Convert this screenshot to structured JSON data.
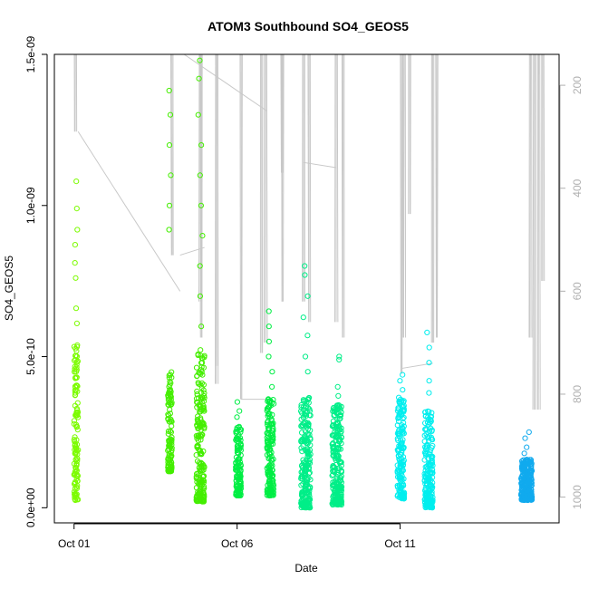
{
  "chart_data": {
    "type": "scatter",
    "title": "ATOM3 Southbound SO4_GEOS5",
    "xlabel": "Date",
    "ylabel": "SO4_GEOS5",
    "xlim": [
      "2017-09-30T09:30",
      "2017-10-15T21:00"
    ],
    "ylim": [
      -5e-11,
      1.5e-09
    ],
    "x_ticks": [
      {
        "date": "2017-10-01",
        "label": "Oct 01"
      },
      {
        "date": "2017-10-06",
        "label": "Oct 06"
      },
      {
        "date": "2017-10-11",
        "label": "Oct 11"
      }
    ],
    "y_ticks": [
      {
        "value": 0,
        "label": "0.0e+00"
      },
      {
        "value": 5e-10,
        "label": "5.0e-10"
      },
      {
        "value": 1e-09,
        "label": "1.0e-09"
      },
      {
        "value": 1.5e-09,
        "label": "1.5e-09"
      }
    ],
    "right_axis": {
      "lim": [
        1050,
        140
      ],
      "ticks": [
        200,
        400,
        600,
        800,
        1000
      ],
      "color": "#b0b0b0"
    },
    "grid": false,
    "series": [
      {
        "color": "#7cfc00",
        "clusters": [
          {
            "start": "2017-10-01T00:00",
            "end": "2017-10-01T03:00",
            "min": 2.5e-11,
            "max": 5.4e-10,
            "outliers": [
              6.1e-10,
              6.6e-10,
              7.6e-10,
              8.1e-10,
              8.7e-10,
              9.2e-10,
              9.9e-10,
              1.08e-09
            ]
          }
        ]
      },
      {
        "color": "#44ee00",
        "clusters": [
          {
            "start": "2017-10-03T21:00",
            "end": "2017-10-04T00:00",
            "min": 1.2e-10,
            "max": 4.5e-10,
            "outliers": [
              9.2e-10,
              1e-09,
              1.1e-09,
              1.2e-09,
              1.3e-09,
              1.38e-09
            ]
          },
          {
            "start": "2017-10-04T18:00",
            "end": "2017-10-05T00:00",
            "min": 2e-11,
            "max": 5.3e-10,
            "outliers": [
              6e-10,
              7e-10,
              8e-10,
              9e-10,
              1e-09,
              1.1e-09,
              1.2e-09,
              1.3e-09,
              1.42e-09,
              1.48e-09
            ]
          }
        ]
      },
      {
        "color": "#00ee44",
        "clusters": [
          {
            "start": "2017-10-05T23:00",
            "end": "2017-10-06T03:00",
            "min": 4e-11,
            "max": 2.8e-10,
            "outliers": [
              3e-10,
              3.2e-10,
              3.5e-10
            ]
          },
          {
            "start": "2017-10-06T22:00",
            "end": "2017-10-07T03:00",
            "min": 4e-11,
            "max": 3.6e-10,
            "outliers": [
              4e-10,
              4.5e-10,
              5e-10,
              5.5e-10,
              6e-10,
              6.5e-10
            ]
          }
        ]
      },
      {
        "color": "#00ee88",
        "clusters": [
          {
            "start": "2017-10-07T23:00",
            "end": "2017-10-08T06:00",
            "min": 0.0,
            "max": 3.7e-10,
            "outliers": [
              4.5e-10,
              5e-10,
              5.7e-10,
              6.3e-10,
              7e-10,
              7.7e-10,
              8e-10
            ]
          },
          {
            "start": "2017-10-08T22:00",
            "end": "2017-10-09T05:00",
            "min": 1e-11,
            "max": 3.4e-10,
            "outliers": [
              3.7e-10,
              4e-10,
              4.9e-10,
              5e-10
            ]
          }
        ]
      },
      {
        "color": "#00eeee",
        "clusters": [
          {
            "start": "2017-10-10T22:00",
            "end": "2017-10-11T03:00",
            "min": 3e-11,
            "max": 3.7e-10,
            "outliers": [
              3.9e-10,
              4.2e-10,
              4.4e-10
            ]
          },
          {
            "start": "2017-10-11T18:00",
            "end": "2017-10-12T00:00",
            "min": 0.0,
            "max": 3.3e-10,
            "outliers": [
              3.8e-10,
              4.2e-10,
              4.8e-10,
              5.3e-10,
              5.8e-10
            ]
          }
        ]
      },
      {
        "color": "#11aaee",
        "clusters": [
          {
            "start": "2017-10-14T17:00",
            "end": "2017-10-15T01:00",
            "min": 2.5e-11,
            "max": 1.6e-10,
            "outliers": [
              1.8e-10,
              2e-10,
              2.3e-10,
              2.5e-10
            ]
          }
        ]
      }
    ],
    "vertical_profiles": [
      {
        "x": "2017-10-01T01:00",
        "top": 140,
        "bottom": 290
      },
      {
        "x": "2017-10-04T00:00",
        "top": 140,
        "bottom": 530
      },
      {
        "x": "2017-10-04T21:00",
        "top": 140,
        "bottom": 620
      },
      {
        "x": "2017-10-04T21:30",
        "top": 140,
        "bottom": 690
      },
      {
        "x": "2017-10-05T09:00",
        "top": 140,
        "bottom": 745
      },
      {
        "x": "2017-10-05T09:00",
        "top": 140,
        "bottom": 780
      },
      {
        "x": "2017-10-06T03:00",
        "top": 140,
        "bottom": 810
      },
      {
        "x": "2017-10-06T18:00",
        "top": 140,
        "bottom": 720
      },
      {
        "x": "2017-10-06T21:00",
        "top": 140,
        "bottom": 700
      },
      {
        "x": "2017-10-07T09:00",
        "top": 140,
        "bottom": 370
      },
      {
        "x": "2017-10-07T09:30",
        "top": 140,
        "bottom": 620
      },
      {
        "x": "2017-10-08T01:00",
        "top": 140,
        "bottom": 620
      },
      {
        "x": "2017-10-08T05:00",
        "top": 140,
        "bottom": 660
      },
      {
        "x": "2017-10-09T01:00",
        "top": 140,
        "bottom": 660
      },
      {
        "x": "2017-10-09T06:00",
        "top": 140,
        "bottom": 690
      },
      {
        "x": "2017-10-11T01:00",
        "top": 140,
        "bottom": 760
      },
      {
        "x": "2017-10-11T03:00",
        "top": 140,
        "bottom": 690
      },
      {
        "x": "2017-10-11T07:00",
        "top": 140,
        "bottom": 450
      },
      {
        "x": "2017-10-12T00:00",
        "top": 140,
        "bottom": 700
      },
      {
        "x": "2017-10-12T03:00",
        "top": 140,
        "bottom": 690
      },
      {
        "x": "2017-10-15T00:00",
        "top": 140,
        "bottom": 690
      },
      {
        "x": "2017-10-15T03:00",
        "top": 140,
        "bottom": 830
      },
      {
        "x": "2017-10-15T06:00",
        "top": 140,
        "bottom": 830
      },
      {
        "x": "2017-10-15T09:00",
        "top": 140,
        "bottom": 580
      }
    ],
    "connector_lines": [
      {
        "x0": "2017-10-01T03:00",
        "p0": 290,
        "x1": "2017-10-04T06:00",
        "p1": 600
      },
      {
        "x0": "2017-10-04T06:00",
        "p0": 530,
        "x1": "2017-10-05T00:00",
        "p1": 515
      },
      {
        "x0": "2017-10-04T09:00",
        "p0": 140,
        "x1": "2017-10-06T22:00",
        "p1": 250
      },
      {
        "x0": "2017-10-06T03:00",
        "p0": 810,
        "x1": "2017-10-07T02:00",
        "p1": 810
      },
      {
        "x0": "2017-10-08T01:00",
        "p0": 350,
        "x1": "2017-10-09T01:00",
        "p1": 360
      },
      {
        "x0": "2017-10-11T01:00",
        "p0": 750,
        "x1": "2017-10-12T00:00",
        "p1": 740
      }
    ]
  }
}
